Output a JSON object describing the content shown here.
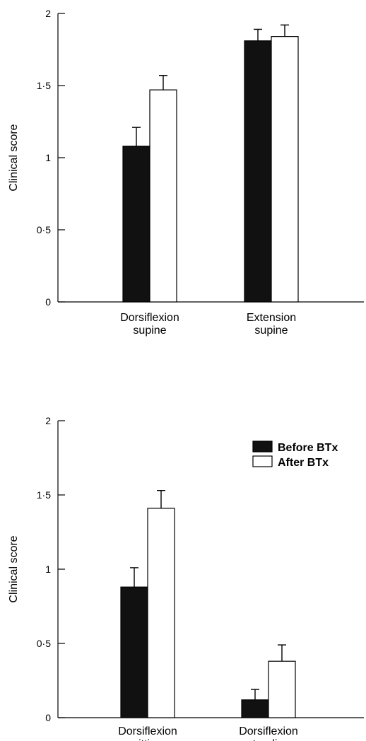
{
  "chart_data": [
    {
      "type": "bar",
      "ylabel": "Clinical score",
      "ylim": [
        0,
        2
      ],
      "yticks": [
        "0",
        "0·5",
        "1",
        "1·5",
        "2"
      ],
      "categories": [
        {
          "lines": [
            "Dorsiflexion",
            "supine"
          ]
        },
        {
          "lines": [
            "Extension",
            "supine"
          ]
        }
      ],
      "series": [
        {
          "name": "Before BTx",
          "color": "#111111",
          "values": [
            1.08,
            1.81
          ],
          "errors": [
            0.13,
            0.08
          ]
        },
        {
          "name": "After BTx",
          "color": "#ffffff",
          "values": [
            1.47,
            1.84
          ],
          "errors": [
            0.1,
            0.08
          ]
        }
      ],
      "legend": false,
      "grid": false
    },
    {
      "type": "bar",
      "ylabel": "Clinical score",
      "ylim": [
        0,
        2
      ],
      "yticks": [
        "0",
        "0·5",
        "1",
        "1·5",
        "2"
      ],
      "categories": [
        {
          "lines": [
            "Dorsiflexion",
            "sitting"
          ]
        },
        {
          "lines": [
            "Dorsiflexion",
            "standing"
          ]
        }
      ],
      "series": [
        {
          "name": "Before BTx",
          "color": "#111111",
          "values": [
            0.88,
            0.12
          ],
          "errors": [
            0.13,
            0.07
          ]
        },
        {
          "name": "After BTx",
          "color": "#ffffff",
          "values": [
            1.41,
            0.38
          ],
          "errors": [
            0.12,
            0.11
          ]
        }
      ],
      "legend": true,
      "legend_position": "top-right",
      "grid": false
    }
  ]
}
